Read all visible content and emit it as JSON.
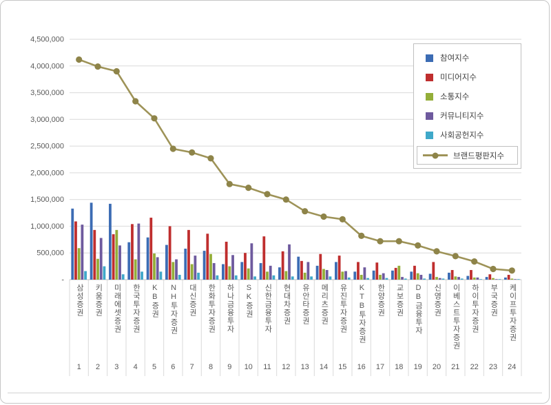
{
  "chart_data": {
    "type": "bar",
    "subtype": "clustered-bars-with-line-overlay",
    "title": "",
    "categories": [
      "삼성증권",
      "키움증권",
      "미래에셋증권",
      "한국투자증권",
      "KB증권",
      "NH투자증권",
      "대신증권",
      "한화투자증권",
      "하나금융투자",
      "SK증권",
      "신한금융투자",
      "현대차증권",
      "유안타증권",
      "메리츠증권",
      "유진투자증권",
      "KTB투자증권",
      "한양증권",
      "교보증권",
      "DB금융투자",
      "신영증권",
      "이베스트투자증권",
      "하이투자증권",
      "부국증권",
      "케이프투자증권"
    ],
    "ranks": [
      "1",
      "2",
      "3",
      "4",
      "5",
      "6",
      "7",
      "8",
      "9",
      "10",
      "11",
      "12",
      "13",
      "14",
      "15",
      "16",
      "17",
      "18",
      "19",
      "20",
      "21",
      "22",
      "23",
      "24"
    ],
    "series": [
      {
        "name": "참여지수",
        "color": "#3c6cb4",
        "values": [
          1330000,
          1440000,
          1420000,
          700000,
          790000,
          650000,
          580000,
          540000,
          290000,
          330000,
          310000,
          230000,
          430000,
          260000,
          330000,
          150000,
          170000,
          170000,
          150000,
          110000,
          130000,
          70000,
          50000,
          40000
        ]
      },
      {
        "name": "미디어지수",
        "color": "#bf2e2e",
        "values": [
          1090000,
          930000,
          850000,
          1040000,
          1160000,
          1000000,
          930000,
          860000,
          710000,
          500000,
          810000,
          530000,
          350000,
          480000,
          450000,
          330000,
          320000,
          220000,
          260000,
          330000,
          180000,
          180000,
          100000,
          90000
        ]
      },
      {
        "name": "소통지수",
        "color": "#94ae39",
        "values": [
          590000,
          390000,
          930000,
          380000,
          490000,
          330000,
          290000,
          480000,
          250000,
          210000,
          150000,
          160000,
          130000,
          200000,
          150000,
          90000,
          90000,
          260000,
          120000,
          50000,
          60000,
          40000,
          30000,
          20000
        ]
      },
      {
        "name": "커뮤니티지수",
        "color": "#6e5a9e",
        "values": [
          1030000,
          780000,
          640000,
          1050000,
          420000,
          380000,
          450000,
          310000,
          460000,
          680000,
          260000,
          660000,
          330000,
          180000,
          160000,
          230000,
          120000,
          50000,
          90000,
          30000,
          50000,
          40000,
          10000,
          10000
        ]
      },
      {
        "name": "사회공헌지수",
        "color": "#3fa8c9",
        "values": [
          160000,
          250000,
          100000,
          150000,
          150000,
          90000,
          130000,
          80000,
          80000,
          60000,
          80000,
          60000,
          60000,
          60000,
          40000,
          30000,
          30000,
          20000,
          20000,
          20000,
          20000,
          10000,
          10000,
          10000
        ]
      }
    ],
    "line_series": {
      "name": "브랜드평판지수",
      "color": "#9e9358",
      "marker_color": "#8e8449",
      "values": [
        4120000,
        3990000,
        3900000,
        3340000,
        3020000,
        2450000,
        2380000,
        2270000,
        1790000,
        1720000,
        1600000,
        1500000,
        1280000,
        1180000,
        1130000,
        820000,
        720000,
        720000,
        640000,
        530000,
        440000,
        340000,
        200000,
        170000
      ]
    },
    "y_axis": {
      "min": 0,
      "max": 4500000,
      "step": 500000,
      "labels": [
        "-",
        "500,000",
        "1,000,000",
        "1,500,000",
        "2,000,000",
        "2,500,000",
        "3,000,000",
        "3,500,000",
        "4,000,000",
        "4,500,000"
      ]
    },
    "grid": true,
    "legend_position": "top-right",
    "colors": {
      "gridline": "#d9d9d9",
      "axis_line": "#bfbfbf",
      "axis_text": "#595959",
      "legend_border": "#bfbfbf",
      "page_border": "#c6c6c6"
    }
  }
}
